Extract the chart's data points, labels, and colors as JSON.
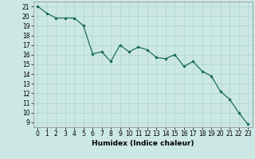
{
  "x": [
    0,
    1,
    2,
    3,
    4,
    5,
    6,
    7,
    8,
    9,
    10,
    11,
    12,
    13,
    14,
    15,
    16,
    17,
    18,
    19,
    20,
    21,
    22,
    23
  ],
  "y": [
    21,
    20.3,
    19.8,
    19.8,
    19.8,
    19.0,
    16.1,
    16.3,
    15.3,
    17.0,
    16.3,
    16.8,
    16.5,
    15.7,
    15.6,
    16.0,
    14.8,
    15.3,
    14.3,
    13.8,
    12.2,
    11.4,
    10.0,
    8.8
  ],
  "line_color": "#1a6b5a",
  "marker": ".",
  "marker_size": 3,
  "bg_color": "#cce8e4",
  "grid_color": "#aad4ce",
  "xlabel": "Humidex (Indice chaleur)",
  "xlim": [
    -0.5,
    23.5
  ],
  "ylim": [
    8.5,
    21.5
  ],
  "yticks": [
    9,
    10,
    11,
    12,
    13,
    14,
    15,
    16,
    17,
    18,
    19,
    20,
    21
  ],
  "xticks": [
    0,
    1,
    2,
    3,
    4,
    5,
    6,
    7,
    8,
    9,
    10,
    11,
    12,
    13,
    14,
    15,
    16,
    17,
    18,
    19,
    20,
    21,
    22,
    23
  ],
  "label_fontsize": 6.5,
  "tick_fontsize": 5.5
}
